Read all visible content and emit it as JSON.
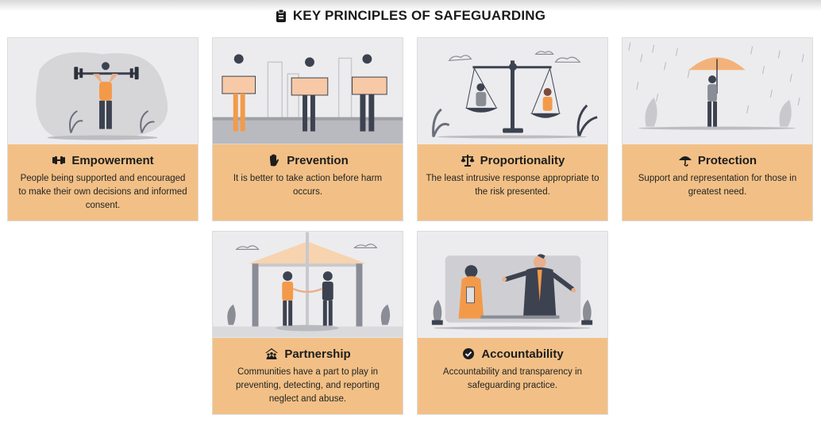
{
  "page": {
    "title": "KEY PRINCIPLES OF SAFEGUARDING",
    "title_icon": "clipboard-icon"
  },
  "principles": [
    {
      "title": "Empowerment",
      "icon": "dumbbell-icon",
      "description": "People being supported and encouraged to make their own decisions and informed consent."
    },
    {
      "title": "Prevention",
      "icon": "raised-hand-icon",
      "description": "It is better to take action before harm occurs."
    },
    {
      "title": "Proportionality",
      "icon": "scales-icon",
      "description": "The least intrusive response appropriate to the risk presented."
    },
    {
      "title": "Protection",
      "icon": "umbrella-icon",
      "description": "Support and representation for those in greatest need."
    },
    {
      "title": "Partnership",
      "icon": "community-icon",
      "description": "Communities have a part to play in preventing, detecting, and reporting neglect and abuse."
    },
    {
      "title": "Accountability",
      "icon": "check-circle-icon",
      "description": "Accountability and transparency in safeguarding practice."
    }
  ],
  "colors": {
    "accent": "#f2c086",
    "illustration_bg": "#ececee",
    "orange": "#f39a4a",
    "dark": "#3d4250"
  }
}
